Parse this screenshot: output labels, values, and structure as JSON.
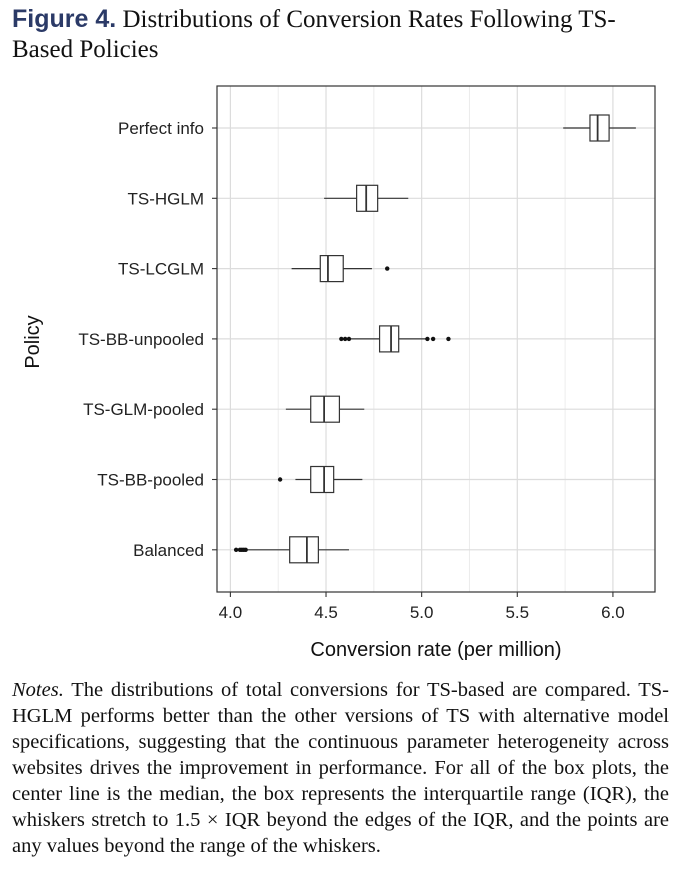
{
  "figure": {
    "label": "Figure 4.",
    "title": "Distributions of Conversion Rates Following TS-Based Policies"
  },
  "chart_data": {
    "type": "boxplot",
    "orientation": "horizontal",
    "xlabel": "Conversion rate (per million)",
    "ylabel": "Policy",
    "xlim": [
      3.93,
      6.22
    ],
    "xticks": [
      4.0,
      4.5,
      5.0,
      5.5,
      6.0
    ],
    "xtick_labels": [
      "4.0",
      "4.5",
      "5.0",
      "5.5",
      "6.0"
    ],
    "grid": true,
    "categories": [
      "Perfect info",
      "TS-HGLM",
      "TS-LCGLM",
      "TS-BB-unpooled",
      "TS-GLM-pooled",
      "TS-BB-pooled",
      "Balanced"
    ],
    "boxes": [
      {
        "name": "Perfect info",
        "whisker_low": 5.74,
        "q1": 5.88,
        "median": 5.92,
        "q3": 5.98,
        "whisker_high": 6.12,
        "outliers": []
      },
      {
        "name": "TS-HGLM",
        "whisker_low": 4.49,
        "q1": 4.66,
        "median": 4.71,
        "q3": 4.77,
        "whisker_high": 4.93,
        "outliers": []
      },
      {
        "name": "TS-LCGLM",
        "whisker_low": 4.32,
        "q1": 4.47,
        "median": 4.51,
        "q3": 4.59,
        "whisker_high": 4.74,
        "outliers": [
          4.82
        ]
      },
      {
        "name": "TS-BB-unpooled",
        "whisker_low": 4.63,
        "q1": 4.78,
        "median": 4.84,
        "q3": 4.88,
        "whisker_high": 5.03,
        "outliers": [
          4.58,
          4.6,
          4.62,
          5.03,
          5.06,
          5.14
        ]
      },
      {
        "name": "TS-GLM-pooled",
        "whisker_low": 4.29,
        "q1": 4.42,
        "median": 4.49,
        "q3": 4.57,
        "whisker_high": 4.7,
        "outliers": []
      },
      {
        "name": "TS-BB-pooled",
        "whisker_low": 4.34,
        "q1": 4.42,
        "median": 4.49,
        "q3": 4.54,
        "whisker_high": 4.69,
        "outliers": [
          4.26
        ]
      },
      {
        "name": "Balanced",
        "whisker_low": 4.09,
        "q1": 4.31,
        "median": 4.4,
        "q3": 4.46,
        "whisker_high": 4.62,
        "outliers": [
          4.03,
          4.05,
          4.06,
          4.07,
          4.08
        ]
      }
    ]
  },
  "notes": {
    "label": "Notes.",
    "text": "The distributions of total conversions for TS-based are compared. TS-HGLM performs better than the other versions of TS with alternative model specifications, suggesting that the continuous parameter heterogeneity across websites drives the improvement in performance. For all of the box plots, the center line is the median, the box represents the interquartile range (IQR), the whiskers stretch to 1.5 × IQR beyond the edges of the IQR, and the points are any values beyond the range of the whiskers."
  }
}
